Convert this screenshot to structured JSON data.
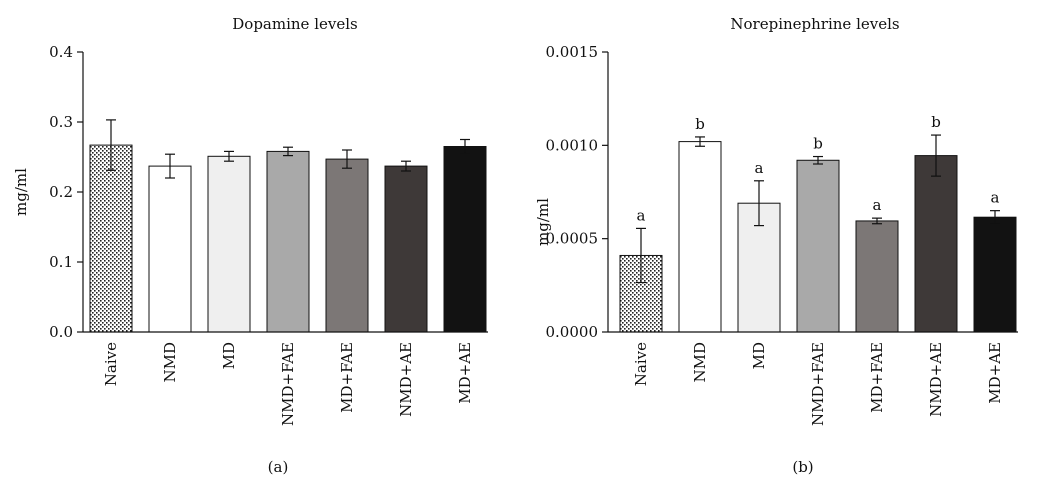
{
  "chart_data": [
    {
      "type": "bar",
      "title": "Dopamine levels",
      "xlabel": "",
      "ylabel": "mg/ml",
      "panel_label": "(a)",
      "ylim": [
        0,
        0.4
      ],
      "yticks": [
        "0.0",
        "0.1",
        "0.2",
        "0.3",
        "0.4"
      ],
      "categories": [
        "Naive",
        "NMD",
        "MD",
        "NMD+FAE",
        "MD+FAE",
        "NMD+AE",
        "MD+AE"
      ],
      "values": [
        0.267,
        0.237,
        0.251,
        0.258,
        0.247,
        0.237,
        0.265
      ],
      "errors": [
        0.036,
        0.017,
        0.007,
        0.006,
        0.013,
        0.007,
        0.01
      ],
      "significance": [
        "",
        "",
        "",
        "",
        "",
        "",
        ""
      ],
      "bar_fills": [
        "dotted",
        "#ffffff",
        "#efefef",
        "#a9a9a9",
        "#7c7776",
        "#3e3938",
        "#121212"
      ],
      "grid": false,
      "legend": "none"
    },
    {
      "type": "bar",
      "title": "Norepinephrine levels",
      "xlabel": "",
      "ylabel": "mg/ml",
      "panel_label": "(b)",
      "ylim": [
        0,
        0.0015
      ],
      "yticks": [
        "0.0000",
        "0.0005",
        "0.0010",
        "0.0015"
      ],
      "categories": [
        "Naive",
        "NMD",
        "MD",
        "NMD+FAE",
        "MD+FAE",
        "NMD+AE",
        "MD+AE"
      ],
      "values": [
        0.00041,
        0.00102,
        0.00069,
        0.00092,
        0.000595,
        0.000945,
        0.000615
      ],
      "errors": [
        0.000145,
        2.5e-05,
        0.00012,
        2e-05,
        1.5e-05,
        0.00011,
        3.5e-05
      ],
      "significance": [
        "a",
        "b",
        "a",
        "b",
        "a",
        "b",
        "a"
      ],
      "bar_fills": [
        "dotted",
        "#ffffff",
        "#efefef",
        "#a9a9a9",
        "#7c7776",
        "#3e3938",
        "#121212"
      ],
      "grid": false,
      "legend": "none"
    }
  ]
}
